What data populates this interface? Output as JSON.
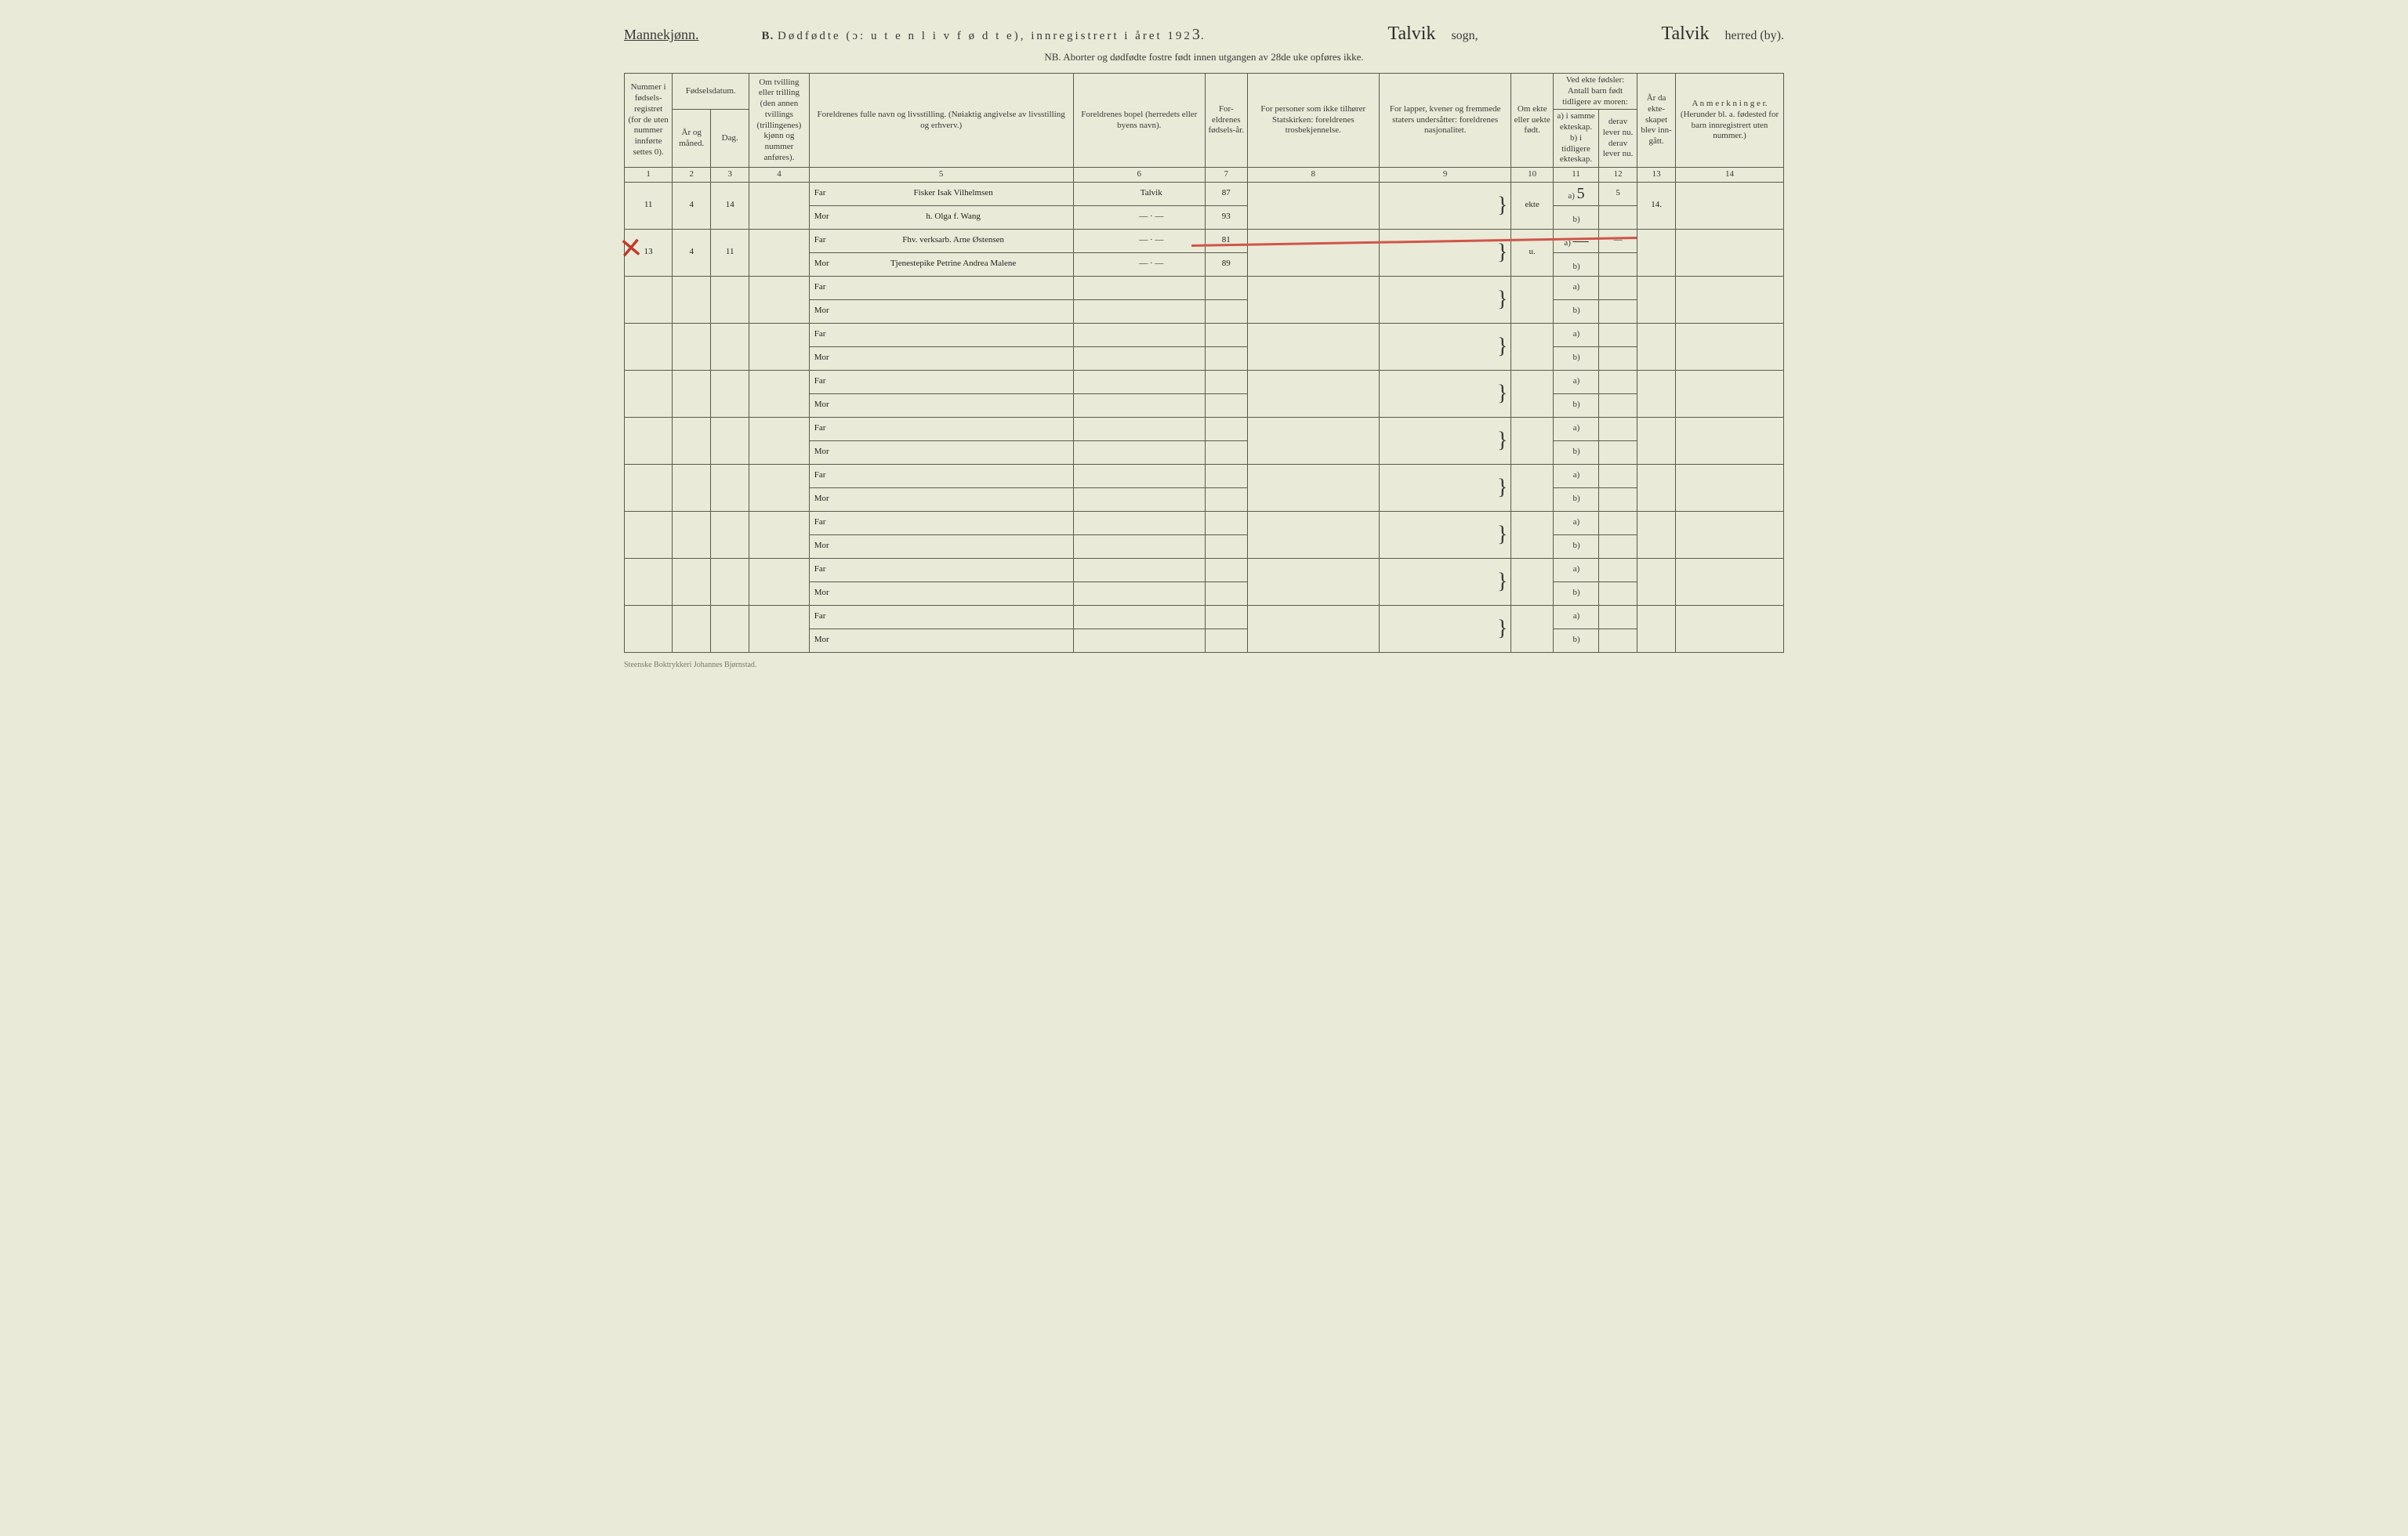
{
  "colors": {
    "paper": "#eaead8",
    "ink": "#3a3a3a",
    "rule": "#5a5a4c",
    "red_mark": "#c0392b",
    "red_bar": "#d0554a"
  },
  "typography": {
    "print_font": "Georgia/serif",
    "hand_font": "Brush Script MT/cursive",
    "header_fontsize_pt": 13,
    "colhead_fontsize_pt": 9,
    "hand_fontsize_pt": 18
  },
  "header": {
    "gender": "Mannekjønn.",
    "form_letter": "B.",
    "title_print": "Dødfødte (ɔ: u t e n  l i v  f ø d t e), innregistrert i året 192",
    "year_suffix": "3",
    "period": ".",
    "sogn_value": "Talvik",
    "sogn_label": "sogn,",
    "herred_value": "Talvik",
    "herred_label": "herred (by).",
    "nb_line": "NB.  Aborter og dødfødte fostre født innen utgangen av 28de uke opføres ikke."
  },
  "columns": {
    "1": "Nummer i fødsels-registret (for de uten nummer innførte settes 0).",
    "2_3_group": "Fødselsdatum.",
    "2": "År og måned.",
    "3": "Dag.",
    "4": "Om tvilling eller trilling (den annen tvillings (trillingenes) kjønn og nummer anføres).",
    "5": "Foreldrenes fulle navn og livsstilling. (Nøiaktig angivelse av livsstilling og erhverv.)",
    "6": "Foreldrenes bopel (herredets eller byens navn).",
    "7": "For-eldrenes fødsels-år.",
    "8": "For personer som ikke tilhører Statskirken: foreldrenes trosbekjennelse.",
    "9": "For lapper, kvener og fremmede staters undersåtter: foreldrenes nasjonalitet.",
    "10": "Om ekte eller uekte født.",
    "11_12_group": "Ved ekte fødsler: Antall barn født tidligere av moren:",
    "11": "a) i samme ekteskap. b) i tidligere ekteskap.",
    "12": "derav lever nu. derav lever nu.",
    "13": "År da ekte-skapet blev inn-gått.",
    "14": "A n m e r k n i n g e r. (Herunder bl. a. fødested for barn innregistrert uten nummer.)"
  },
  "column_numbers": [
    "1",
    "2",
    "3",
    "4",
    "5",
    "6",
    "7",
    "8",
    "9",
    "10",
    "11",
    "12",
    "13",
    "14"
  ],
  "labels": {
    "far": "Far",
    "mor": "Mor",
    "sub_a": "a)",
    "sub_b": "b)"
  },
  "rows": [
    {
      "num": "11",
      "aar_mnd": "4",
      "dag": "14",
      "tvilling": "",
      "far": "Fisker Isak Vilhelmsen",
      "mor": "h. Olga f. Wang",
      "bopel_far": "Talvik",
      "bopel_mor": "— · —",
      "faar_far": "87",
      "faar_mor": "93",
      "c8": "",
      "c9": "",
      "c10": "ekte",
      "c11a": "5",
      "c12a": "5",
      "c11b": "",
      "c12b": "",
      "c13": "14.",
      "c14": "",
      "crossed": false
    },
    {
      "num": "13",
      "aar_mnd": "4",
      "dag": "11",
      "tvilling": "",
      "far": "Fhv. verksarb. Arne Østensen",
      "mor": "Tjenestepike Petrine Andrea Malene",
      "bopel_far": "— · —",
      "bopel_mor": "— · —",
      "faar_far": "81",
      "faar_mor": "89",
      "c8": "",
      "c9": "",
      "c10": "u.",
      "c11a": "—",
      "c12a": "—",
      "c11b": "",
      "c12b": "",
      "c13": "",
      "c14": "",
      "crossed": true
    }
  ],
  "empty_row_count": 8,
  "footer": "Steenske Boktrykkeri Johannes Bjørnstad."
}
